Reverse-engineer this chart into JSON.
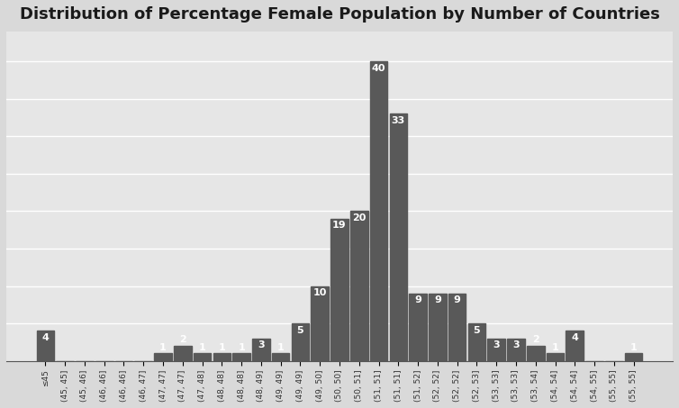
{
  "title": "Distribution of Percentage Female Population by Number of Countries",
  "x_labels": [
    "≤45",
    "(45, 45]",
    "(45, 46]",
    "(46, 46]",
    "(46, 46]",
    "(46, 47]",
    "(47, 47]",
    "(47, 47]",
    "(47, 48]",
    "(48, 48]",
    "(48, 48]",
    "(48, 49]",
    "(49, 49]",
    "(49, 49]",
    "(49, 50]",
    "(50, 50]",
    "(50, 51]",
    "(51, 51]",
    "(51, 51]",
    "(51, 52]",
    "(52, 52]",
    "(52, 52]",
    "(52, 53]",
    "(53, 53]",
    "(53, 53]",
    "(53, 54]",
    "(54, 54]",
    "(54, 54]",
    "(54, 55]",
    "(55, 55]",
    "(55, 55]"
  ],
  "values": [
    4,
    0,
    0,
    0,
    0,
    0,
    1,
    2,
    1,
    1,
    1,
    3,
    1,
    5,
    10,
    19,
    20,
    40,
    33,
    9,
    9,
    9,
    5,
    3,
    3,
    2,
    1,
    4,
    0,
    0,
    1
  ],
  "bar_color": "#595959",
  "label_color": "#ffffff",
  "background_color": "#d9d9d9",
  "plot_background_color": "#e6e6e6",
  "ylim": [
    0,
    44
  ],
  "grid_color": "#ffffff",
  "grid_y_vals": [
    5,
    10,
    15,
    20,
    25,
    30,
    35,
    40
  ],
  "title_fontsize": 13,
  "bar_label_fontsize": 8,
  "tick_fontsize": 6.5,
  "tick_color": "#333333",
  "spine_color": "#555555"
}
